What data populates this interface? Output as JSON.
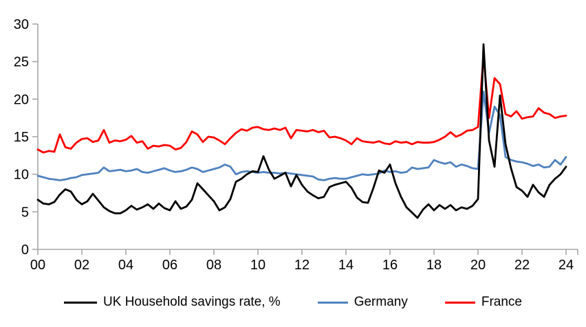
{
  "chart_data": {
    "type": "line",
    "title": "",
    "xlabel": "",
    "ylabel": "",
    "x_start_year": 2000,
    "x_step_years": 0.25,
    "x_tick_labels": [
      "00",
      "02",
      "04",
      "06",
      "08",
      "10",
      "12",
      "14",
      "16",
      "18",
      "20",
      "22",
      "24"
    ],
    "y_ticks": [
      0,
      5,
      10,
      15,
      20,
      25,
      30
    ],
    "ylim": [
      0,
      30
    ],
    "grid": false,
    "legend_position": "bottom",
    "axis_color": "#a6a6a6",
    "series": [
      {
        "name": "UK Household savings rate, %",
        "color": "#000000",
        "values": [
          6.6,
          6.1,
          6.0,
          6.3,
          7.3,
          8.0,
          7.7,
          6.6,
          6.0,
          6.4,
          7.4,
          6.5,
          5.6,
          5.1,
          4.8,
          4.8,
          5.2,
          5.8,
          5.3,
          5.6,
          6.0,
          5.4,
          6.1,
          5.5,
          5.2,
          6.4,
          5.4,
          5.7,
          6.6,
          8.8,
          8.0,
          7.2,
          6.4,
          5.2,
          5.6,
          6.7,
          9.0,
          9.4,
          10.0,
          10.4,
          10.3,
          12.4,
          10.6,
          9.4,
          9.8,
          10.2,
          8.4,
          9.9,
          8.6,
          7.7,
          7.2,
          6.8,
          7.0,
          8.3,
          8.6,
          8.8,
          9.0,
          8.2,
          6.9,
          6.3,
          6.2,
          8.2,
          10.5,
          10.2,
          11.3,
          8.8,
          7.0,
          5.6,
          4.9,
          4.2,
          5.3,
          6.0,
          5.2,
          5.9,
          5.4,
          5.9,
          5.2,
          5.6,
          5.4,
          5.8,
          6.7,
          27.3,
          14.5,
          11.0,
          20.5,
          14.0,
          10.8,
          8.3,
          7.8,
          7.0,
          8.6,
          7.6,
          7.0,
          8.6,
          9.4,
          10.0,
          11.0
        ]
      },
      {
        "name": "Germany",
        "color": "#4f81bd",
        "values": [
          9.8,
          9.6,
          9.4,
          9.3,
          9.2,
          9.3,
          9.5,
          9.6,
          9.9,
          10.0,
          10.1,
          10.2,
          10.9,
          10.4,
          10.5,
          10.6,
          10.4,
          10.5,
          10.7,
          10.3,
          10.2,
          10.4,
          10.6,
          10.8,
          10.5,
          10.3,
          10.4,
          10.6,
          10.9,
          10.7,
          10.3,
          10.5,
          10.7,
          10.9,
          11.3,
          11.0,
          10.0,
          10.3,
          10.4,
          10.3,
          10.2,
          10.3,
          10.2,
          10.2,
          10.1,
          10.2,
          10.1,
          10.0,
          9.9,
          9.8,
          9.7,
          9.3,
          9.2,
          9.4,
          9.5,
          9.4,
          9.4,
          9.6,
          9.8,
          10.0,
          9.9,
          10.0,
          10.1,
          10.5,
          10.3,
          10.4,
          10.2,
          10.3,
          10.9,
          10.7,
          10.8,
          10.9,
          11.9,
          11.6,
          11.4,
          11.6,
          11.0,
          11.3,
          11.1,
          10.8,
          10.7,
          21.0,
          15.5,
          19.0,
          17.9,
          12.3,
          11.9,
          11.7,
          11.6,
          11.4,
          11.1,
          11.3,
          10.9,
          11.0,
          11.9,
          11.3,
          12.3
        ]
      },
      {
        "name": "France",
        "color": "#ff0000",
        "values": [
          13.3,
          12.9,
          13.1,
          13.0,
          15.3,
          13.6,
          13.4,
          14.2,
          14.7,
          14.8,
          14.3,
          14.5,
          15.9,
          14.2,
          14.5,
          14.4,
          14.6,
          15.1,
          14.2,
          14.4,
          13.4,
          13.8,
          13.7,
          13.9,
          13.8,
          13.3,
          13.5,
          14.3,
          15.7,
          15.3,
          14.3,
          15.0,
          14.9,
          14.5,
          14.0,
          14.8,
          15.5,
          16.0,
          15.8,
          16.2,
          16.3,
          16.0,
          15.9,
          16.1,
          15.9,
          16.2,
          14.8,
          15.9,
          15.8,
          15.7,
          15.9,
          15.6,
          15.8,
          14.9,
          15.0,
          14.8,
          14.5,
          14.0,
          14.8,
          14.4,
          14.3,
          14.2,
          14.4,
          14.1,
          14.0,
          14.4,
          14.2,
          14.3,
          14.0,
          14.3,
          14.2,
          14.2,
          14.3,
          14.6,
          15.0,
          15.6,
          15.0,
          15.3,
          15.8,
          15.9,
          16.3,
          25.8,
          17.5,
          22.8,
          22.0,
          18.0,
          17.7,
          18.4,
          17.4,
          17.6,
          17.7,
          18.8,
          18.2,
          18.0,
          17.5,
          17.7,
          17.8
        ]
      }
    ]
  }
}
